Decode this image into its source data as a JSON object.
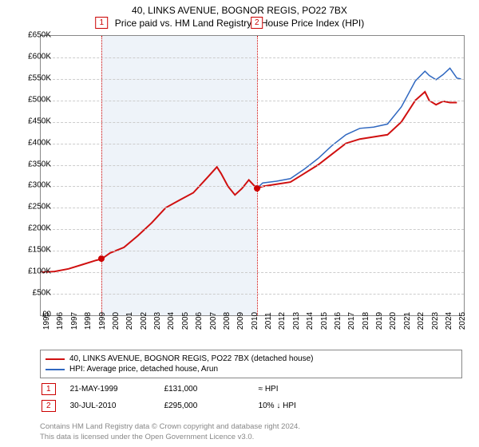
{
  "title": "40, LINKS AVENUE, BOGNOR REGIS, PO22 7BX",
  "subtitle": "Price paid vs. HM Land Registry's House Price Index (HPI)",
  "chart": {
    "type": "line",
    "background_color": "#ffffff",
    "shade_color": "#eef3f9",
    "grid_color": "#cccccc",
    "border_color": "#888888",
    "x_start": 1995,
    "x_end": 2025.5,
    "xticks": [
      1995,
      1996,
      1997,
      1998,
      1999,
      2000,
      2001,
      2002,
      2003,
      2004,
      2005,
      2006,
      2007,
      2008,
      2009,
      2010,
      2011,
      2012,
      2013,
      2014,
      2015,
      2016,
      2017,
      2018,
      2019,
      2020,
      2021,
      2022,
      2023,
      2024,
      2025
    ],
    "y_min": 0,
    "y_max": 650000,
    "ytick_step": 50000,
    "ylabel_prefix": "£",
    "ylabel_suffix": "K",
    "shade_ranges": [
      [
        1999.39,
        2010.58
      ]
    ],
    "markers_vertical": [
      {
        "label": "1",
        "x": 1999.39,
        "color": "#cc0000"
      },
      {
        "label": "2",
        "x": 2010.58,
        "color": "#cc0000"
      }
    ],
    "point_markers": [
      {
        "x": 1999.39,
        "y": 131000,
        "color": "#cc0000"
      },
      {
        "x": 2010.58,
        "y": 295000,
        "color": "#cc0000"
      }
    ],
    "series": [
      {
        "name": "40, LINKS AVENUE, BOGNOR REGIS, PO22 7BX (detached house)",
        "color": "#d01010",
        "width": 2,
        "data": [
          [
            1995,
            100000
          ],
          [
            1996,
            102000
          ],
          [
            1997,
            108000
          ],
          [
            1998,
            118000
          ],
          [
            1999,
            128000
          ],
          [
            1999.39,
            131000
          ],
          [
            2000,
            145000
          ],
          [
            2001,
            158000
          ],
          [
            2002,
            185000
          ],
          [
            2003,
            215000
          ],
          [
            2004,
            250000
          ],
          [
            2005,
            268000
          ],
          [
            2006,
            285000
          ],
          [
            2007,
            320000
          ],
          [
            2007.7,
            345000
          ],
          [
            2008,
            330000
          ],
          [
            2008.5,
            300000
          ],
          [
            2009,
            280000
          ],
          [
            2009.5,
            295000
          ],
          [
            2010,
            315000
          ],
          [
            2010.58,
            295000
          ],
          [
            2011,
            300000
          ],
          [
            2012,
            305000
          ],
          [
            2013,
            310000
          ],
          [
            2014,
            330000
          ],
          [
            2015,
            350000
          ],
          [
            2016,
            375000
          ],
          [
            2017,
            400000
          ],
          [
            2018,
            410000
          ],
          [
            2019,
            415000
          ],
          [
            2020,
            420000
          ],
          [
            2021,
            450000
          ],
          [
            2022,
            500000
          ],
          [
            2022.7,
            520000
          ],
          [
            2023,
            500000
          ],
          [
            2023.5,
            490000
          ],
          [
            2024,
            498000
          ],
          [
            2024.5,
            495000
          ],
          [
            2025,
            495000
          ]
        ]
      },
      {
        "name": "HPI: Average price, detached house, Arun",
        "color": "#3068c0",
        "width": 1.5,
        "data": [
          [
            2010.58,
            295000
          ],
          [
            2011,
            308000
          ],
          [
            2012,
            312000
          ],
          [
            2013,
            318000
          ],
          [
            2014,
            340000
          ],
          [
            2015,
            365000
          ],
          [
            2016,
            395000
          ],
          [
            2017,
            420000
          ],
          [
            2018,
            435000
          ],
          [
            2019,
            438000
          ],
          [
            2020,
            445000
          ],
          [
            2021,
            485000
          ],
          [
            2022,
            545000
          ],
          [
            2022.7,
            568000
          ],
          [
            2023,
            558000
          ],
          [
            2023.5,
            548000
          ],
          [
            2024,
            560000
          ],
          [
            2024.5,
            575000
          ],
          [
            2025,
            552000
          ],
          [
            2025.3,
            550000
          ]
        ]
      }
    ]
  },
  "legend": {
    "rows": [
      {
        "color": "#d01010",
        "label": "40, LINKS AVENUE, BOGNOR REGIS, PO22 7BX (detached house)"
      },
      {
        "color": "#3068c0",
        "label": "HPI: Average price, detached house, Arun"
      }
    ]
  },
  "sales": [
    {
      "badge": "1",
      "date": "21-MAY-1999",
      "price": "£131,000",
      "note": "≈ HPI"
    },
    {
      "badge": "2",
      "date": "30-JUL-2010",
      "price": "£295,000",
      "note": "10% ↓ HPI"
    }
  ],
  "footer": {
    "line1": "Contains HM Land Registry data © Crown copyright and database right 2024.",
    "line2": "This data is licensed under the Open Government Licence v3.0."
  }
}
